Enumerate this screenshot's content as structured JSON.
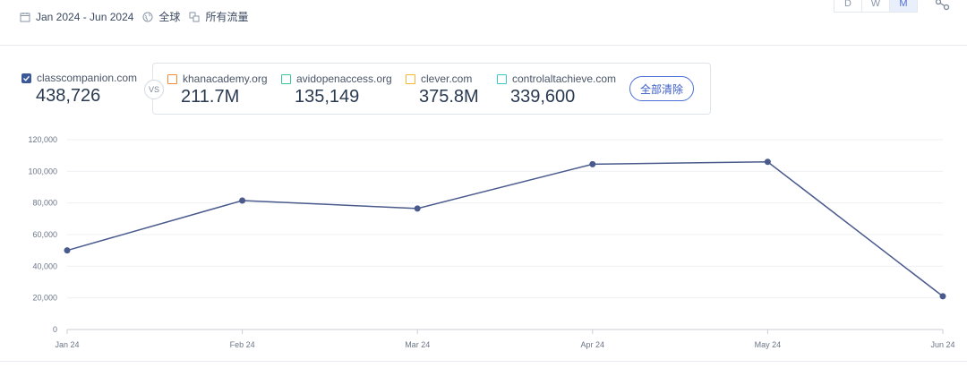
{
  "filters": {
    "date_range": "Jan 2024 - Jun 2024",
    "region": "全球",
    "traffic": "所有流量"
  },
  "granularity": [
    "D",
    "W",
    "M"
  ],
  "granularity_selected": "M",
  "icons": {
    "calendar": "calendar-icon",
    "globe": "globe-icon",
    "traffic": "traffic-source-icon",
    "share": "share-icon"
  },
  "main_site": {
    "name": "classcompanion.com",
    "value": "438,726",
    "checked": true,
    "color": "#3b5998"
  },
  "vs_label": "VS",
  "competitors": [
    {
      "name": "khanacademy.org",
      "value": "211.7M",
      "color": "#f08a3c"
    },
    {
      "name": "avidopenaccess.org",
      "value": "135,149",
      "color": "#3cc49a"
    },
    {
      "name": "clever.com",
      "value": "375.8M",
      "color": "#f5b731"
    },
    {
      "name": "controlaltachieve.com",
      "value": "339,600",
      "color": "#3cc7cf"
    }
  ],
  "clear_all_label": "全部清除",
  "colors": {
    "line": "#4a5a8c",
    "accent": "#4b6fd6",
    "grid": "#eef0f4",
    "axis_text": "#6b7687"
  },
  "chart_data": {
    "type": "line",
    "categories": [
      "Jan 24",
      "Feb 24",
      "Mar 24",
      "Apr 24",
      "May 24",
      "Jun 24"
    ],
    "series": [
      {
        "name": "classcompanion.com",
        "values": [
          50000,
          81500,
          76500,
          104500,
          106000,
          21000
        ]
      }
    ],
    "yticks": [
      "0",
      "20,000",
      "40,000",
      "60,000",
      "80,000",
      "100,000",
      "120,000"
    ],
    "ylim": [
      0,
      120000
    ],
    "grid": true,
    "legend": "none"
  }
}
